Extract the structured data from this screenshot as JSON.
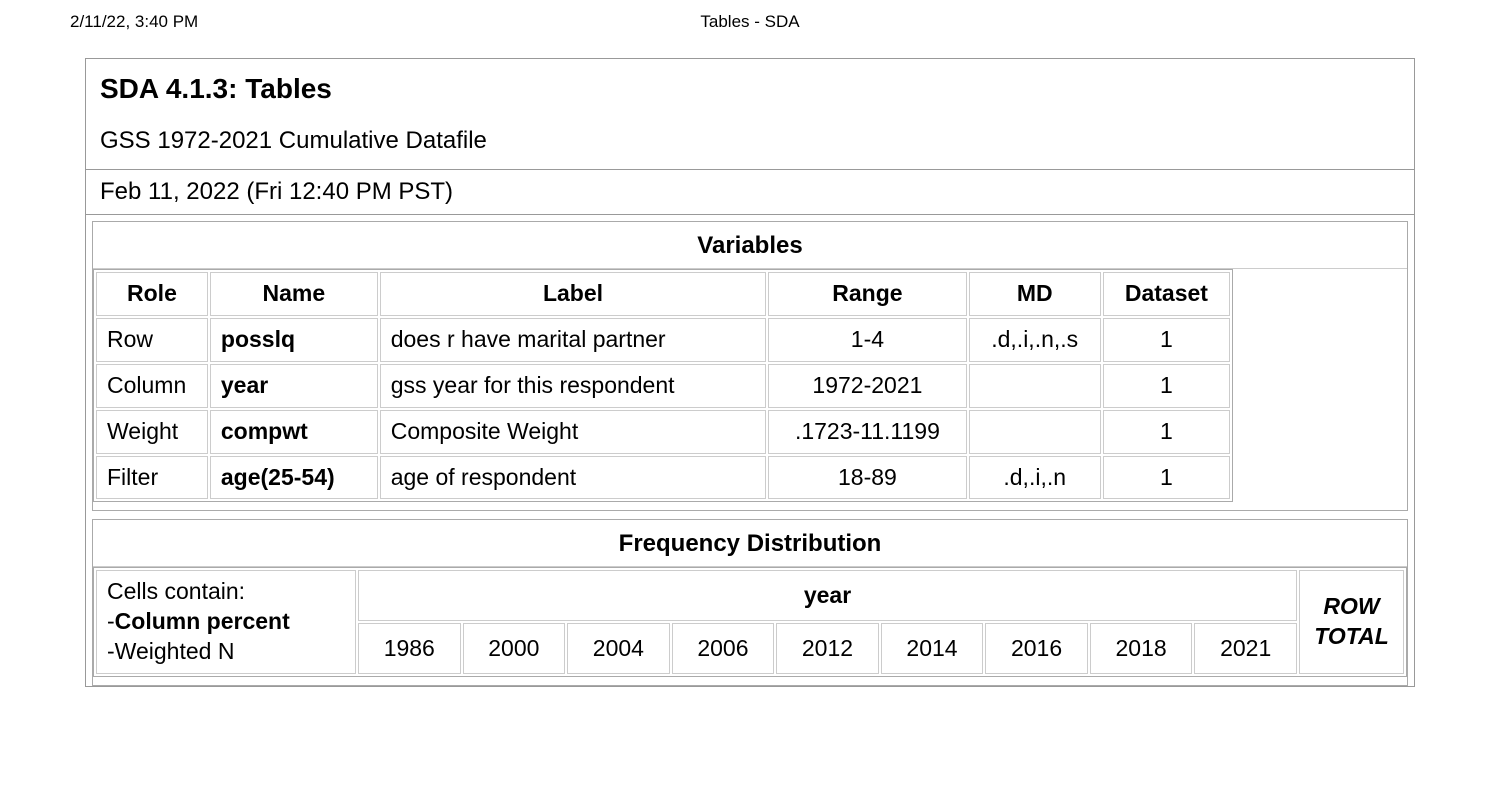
{
  "header": {
    "timestamp_left": "2/11/22, 3:40 PM",
    "title_center": "Tables - SDA"
  },
  "main": {
    "title": "SDA 4.1.3: Tables",
    "subtitle": "GSS 1972-2021 Cumulative Datafile",
    "generated": "Feb 11, 2022 (Fri 12:40 PM PST)"
  },
  "variables_table": {
    "title": "Variables",
    "columns": [
      "Role",
      "Name",
      "Label",
      "Range",
      "MD",
      "Dataset"
    ],
    "rows": [
      {
        "role": "Row",
        "name": "posslq",
        "label": "does r have marital partner",
        "range": "1-4",
        "md": ".d,.i,.n,.s",
        "dataset": "1"
      },
      {
        "role": "Column",
        "name": "year",
        "label": "gss year for this respondent",
        "range": "1972-2021",
        "md": "",
        "dataset": "1"
      },
      {
        "role": "Weight",
        "name": "compwt",
        "label": "Composite Weight",
        "range": ".1723-11.1199",
        "md": "",
        "dataset": "1"
      },
      {
        "role": "Filter",
        "name": "age(25-54)",
        "label": "age of respondent",
        "range": "18-89",
        "md": ".d,.i,.n",
        "dataset": "1"
      }
    ],
    "col_widths": [
      "110px",
      "165px",
      "380px",
      "195px",
      "130px",
      "125px"
    ]
  },
  "freq_table": {
    "title": "Frequency Distribution",
    "cells_contain_label": "Cells contain:",
    "cells_contain_lines": [
      {
        "prefix": "-",
        "text": "Column percent",
        "bold": true
      },
      {
        "prefix": "-",
        "text": "Weighted N",
        "bold": false
      }
    ],
    "col_var_label": "year",
    "year_columns": [
      "1986",
      "2000",
      "2004",
      "2006",
      "2012",
      "2014",
      "2016",
      "2018",
      "2021"
    ],
    "row_total_label": "ROW TOTAL"
  },
  "styling": {
    "page_bg": "#ffffff",
    "text_color": "#000000",
    "border_color": "#aaaaaa",
    "cell_border_color": "#cccccc",
    "font_family": "Arial, Helvetica, sans-serif"
  }
}
